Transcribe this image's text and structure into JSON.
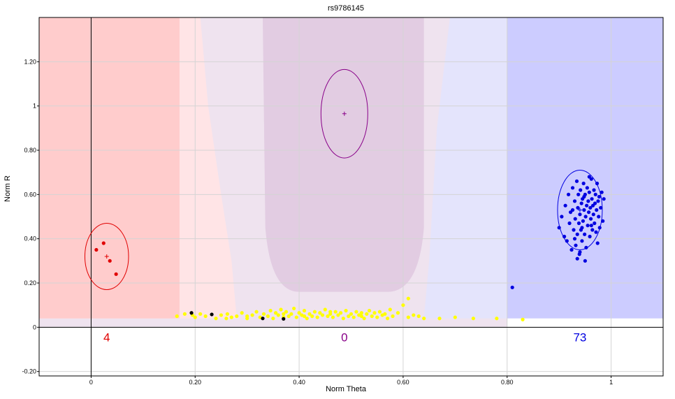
{
  "chart_data": {
    "type": "scatter",
    "title": "rs9786145",
    "xlabel": "Norm Theta",
    "ylabel": "Norm R",
    "xlim": [
      -0.1,
      1.1
    ],
    "ylim": [
      -0.22,
      1.4
    ],
    "x_ticks": [
      0,
      0.2,
      0.4,
      0.6,
      0.8,
      1
    ],
    "x_tick_labels": [
      "0",
      "0.20",
      "0.40",
      "0.60",
      "0.80",
      "1"
    ],
    "y_ticks": [
      -0.2,
      0,
      0.2,
      0.4,
      0.6,
      0.8,
      1,
      1.2
    ],
    "y_tick_labels": [
      "-0.20",
      "0",
      "0.20",
      "0.40",
      "0.60",
      "0.80",
      "1",
      "1.20"
    ],
    "grid": true,
    "colors": {
      "aa": "#e00000",
      "ab": "#880088",
      "bb": "#0000e0",
      "nocall": "#ffff00",
      "black": "#000000",
      "region_aa": "#ffcccc",
      "region_aa_light": "#ffe4e6",
      "region_ab": "#e2cce2",
      "region_ab_light": "#efe3ef",
      "region_bb": "#ccccff",
      "region_bb_light": "#e4e4fc"
    },
    "clusters": [
      {
        "cluster": "AA",
        "count": "4",
        "count_x": 0.03,
        "center": [
          0.03,
          0.32
        ],
        "radius": [
          0.042,
          0.15
        ],
        "color": "#e00000"
      },
      {
        "cluster": "AB",
        "count": "0",
        "count_x": 0.487,
        "center": [
          0.487,
          0.965
        ],
        "radius": [
          0.045,
          0.2
        ],
        "color": "#880088"
      },
      {
        "cluster": "BB",
        "count": "73",
        "count_x": 0.94,
        "center": [
          0.94,
          0.53
        ],
        "radius": [
          0.043,
          0.18
        ],
        "color": "#0000e0"
      }
    ],
    "series": [
      {
        "cluster": "AA",
        "color": "#e00000",
        "points": [
          [
            0.01,
            0.35
          ],
          [
            0.024,
            0.38
          ],
          [
            0.036,
            0.3
          ],
          [
            0.048,
            0.24
          ]
        ]
      },
      {
        "cluster": "BB",
        "color": "#0000e0",
        "points": [
          [
            0.81,
            0.18
          ],
          [
            0.9,
            0.45
          ],
          [
            0.905,
            0.5
          ],
          [
            0.91,
            0.41
          ],
          [
            0.912,
            0.55
          ],
          [
            0.915,
            0.39
          ],
          [
            0.918,
            0.6
          ],
          [
            0.92,
            0.47
          ],
          [
            0.922,
            0.52
          ],
          [
            0.924,
            0.35
          ],
          [
            0.926,
            0.63
          ],
          [
            0.928,
            0.44
          ],
          [
            0.93,
            0.57
          ],
          [
            0.931,
            0.49
          ],
          [
            0.932,
            0.37
          ],
          [
            0.934,
            0.66
          ],
          [
            0.935,
            0.42
          ],
          [
            0.936,
            0.54
          ],
          [
            0.937,
            0.6
          ],
          [
            0.938,
            0.47
          ],
          [
            0.939,
            0.33
          ],
          [
            0.94,
            0.51
          ],
          [
            0.941,
            0.62
          ],
          [
            0.942,
            0.44
          ],
          [
            0.943,
            0.56
          ],
          [
            0.944,
            0.39
          ],
          [
            0.945,
            0.58
          ],
          [
            0.946,
            0.48
          ],
          [
            0.947,
            0.65
          ],
          [
            0.948,
            0.53
          ],
          [
            0.949,
            0.42
          ],
          [
            0.95,
            0.6
          ],
          [
            0.951,
            0.5
          ],
          [
            0.952,
            0.36
          ],
          [
            0.953,
            0.55
          ],
          [
            0.954,
            0.63
          ],
          [
            0.955,
            0.46
          ],
          [
            0.956,
            0.57
          ],
          [
            0.957,
            0.52
          ],
          [
            0.958,
            0.61
          ],
          [
            0.959,
            0.41
          ],
          [
            0.96,
            0.54
          ],
          [
            0.961,
            0.49
          ],
          [
            0.962,
            0.67
          ],
          [
            0.963,
            0.58
          ],
          [
            0.964,
            0.44
          ],
          [
            0.965,
            0.55
          ],
          [
            0.966,
            0.51
          ],
          [
            0.967,
            0.62
          ],
          [
            0.968,
            0.47
          ],
          [
            0.969,
            0.56
          ],
          [
            0.97,
            0.6
          ],
          [
            0.971,
            0.43
          ],
          [
            0.972,
            0.53
          ],
          [
            0.973,
            0.65
          ],
          [
            0.974,
            0.38
          ],
          [
            0.975,
            0.57
          ],
          [
            0.976,
            0.5
          ],
          [
            0.977,
            0.59
          ],
          [
            0.978,
            0.45
          ],
          [
            0.98,
            0.54
          ],
          [
            0.982,
            0.61
          ],
          [
            0.984,
            0.48
          ],
          [
            0.986,
            0.58
          ],
          [
            0.95,
            0.3
          ],
          [
            0.94,
            0.34
          ],
          [
            0.935,
            0.31
          ],
          [
            0.93,
            0.4
          ],
          [
            0.958,
            0.68
          ],
          [
            0.944,
            0.45
          ],
          [
            0.926,
            0.53
          ],
          [
            0.962,
            0.46
          ],
          [
            0.948,
            0.59
          ]
        ]
      },
      {
        "cluster": "No call",
        "color": "#ffff00",
        "points": [
          [
            0.165,
            0.05
          ],
          [
            0.18,
            0.06
          ],
          [
            0.195,
            0.055
          ],
          [
            0.2,
            0.045
          ],
          [
            0.21,
            0.06
          ],
          [
            0.22,
            0.05
          ],
          [
            0.24,
            0.04
          ],
          [
            0.25,
            0.055
          ],
          [
            0.262,
            0.06
          ],
          [
            0.27,
            0.045
          ],
          [
            0.28,
            0.05
          ],
          [
            0.29,
            0.065
          ],
          [
            0.3,
            0.04
          ],
          [
            0.31,
            0.055
          ],
          [
            0.318,
            0.07
          ],
          [
            0.325,
            0.045
          ],
          [
            0.332,
            0.06
          ],
          [
            0.34,
            0.05
          ],
          [
            0.345,
            0.075
          ],
          [
            0.35,
            0.04
          ],
          [
            0.355,
            0.065
          ],
          [
            0.36,
            0.055
          ],
          [
            0.365,
            0.08
          ],
          [
            0.37,
            0.045
          ],
          [
            0.375,
            0.07
          ],
          [
            0.38,
            0.05
          ],
          [
            0.385,
            0.06
          ],
          [
            0.39,
            0.085
          ],
          [
            0.395,
            0.045
          ],
          [
            0.4,
            0.065
          ],
          [
            0.405,
            0.055
          ],
          [
            0.41,
            0.075
          ],
          [
            0.415,
            0.04
          ],
          [
            0.42,
            0.06
          ],
          [
            0.425,
            0.05
          ],
          [
            0.43,
            0.07
          ],
          [
            0.435,
            0.045
          ],
          [
            0.44,
            0.065
          ],
          [
            0.445,
            0.055
          ],
          [
            0.45,
            0.08
          ],
          [
            0.455,
            0.05
          ],
          [
            0.46,
            0.06
          ],
          [
            0.465,
            0.045
          ],
          [
            0.47,
            0.07
          ],
          [
            0.475,
            0.055
          ],
          [
            0.48,
            0.065
          ],
          [
            0.485,
            0.04
          ],
          [
            0.49,
            0.075
          ],
          [
            0.495,
            0.05
          ],
          [
            0.5,
            0.06
          ],
          [
            0.505,
            0.045
          ],
          [
            0.51,
            0.07
          ],
          [
            0.515,
            0.055
          ],
          [
            0.52,
            0.065
          ],
          [
            0.525,
            0.04
          ],
          [
            0.53,
            0.06
          ],
          [
            0.535,
            0.075
          ],
          [
            0.54,
            0.05
          ],
          [
            0.545,
            0.065
          ],
          [
            0.55,
            0.045
          ],
          [
            0.555,
            0.07
          ],
          [
            0.56,
            0.055
          ],
          [
            0.565,
            0.06
          ],
          [
            0.57,
            0.04
          ],
          [
            0.575,
            0.08
          ],
          [
            0.58,
            0.05
          ],
          [
            0.59,
            0.065
          ],
          [
            0.6,
            0.1
          ],
          [
            0.61,
            0.045
          ],
          [
            0.62,
            0.055
          ],
          [
            0.63,
            0.05
          ],
          [
            0.64,
            0.04
          ],
          [
            0.67,
            0.04
          ],
          [
            0.7,
            0.045
          ],
          [
            0.735,
            0.04
          ],
          [
            0.78,
            0.04
          ],
          [
            0.83,
            0.035
          ],
          [
            0.61,
            0.13
          ],
          [
            0.37,
            0.06
          ],
          [
            0.41,
            0.05
          ],
          [
            0.3,
            0.05
          ],
          [
            0.26,
            0.04
          ],
          [
            0.46,
            0.07
          ],
          [
            0.52,
            0.05
          ]
        ]
      },
      {
        "cluster": "Unassigned",
        "color": "#000000",
        "points": [
          [
            0.193,
            0.065
          ],
          [
            0.232,
            0.058
          ],
          [
            0.33,
            0.04
          ],
          [
            0.37,
            0.038
          ]
        ]
      }
    ]
  }
}
